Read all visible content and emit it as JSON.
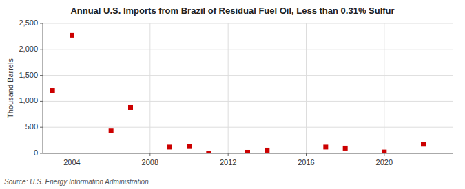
{
  "chart_data": {
    "type": "scatter",
    "title": "Annual U.S. Imports from Brazil of Residual Fuel Oil, Less than 0.31% Sulfur",
    "ylabel": "Thousand Barrels",
    "source": "Source: U.S. Energy Information Administration",
    "x": [
      2003,
      2004,
      2006,
      2007,
      2009,
      2010,
      2011,
      2013,
      2014,
      2017,
      2018,
      2020,
      2022
    ],
    "values": [
      1210,
      2270,
      440,
      880,
      120,
      130,
      5,
      20,
      60,
      120,
      100,
      25,
      175
    ],
    "color": "#cc0000",
    "marker": "square",
    "xlim": [
      2002.5,
      2023.5
    ],
    "ylim": [
      0,
      2500
    ],
    "xticks": [
      2004,
      2008,
      2012,
      2016,
      2020
    ],
    "yticks": [
      0,
      500,
      {
        "value": 1000,
        "label": "1,000"
      },
      {
        "value": 1500,
        "label": "1,500"
      },
      {
        "value": 2000,
        "label": "2,000"
      },
      {
        "value": 2500,
        "label": "2,500"
      }
    ],
    "grid": true
  }
}
